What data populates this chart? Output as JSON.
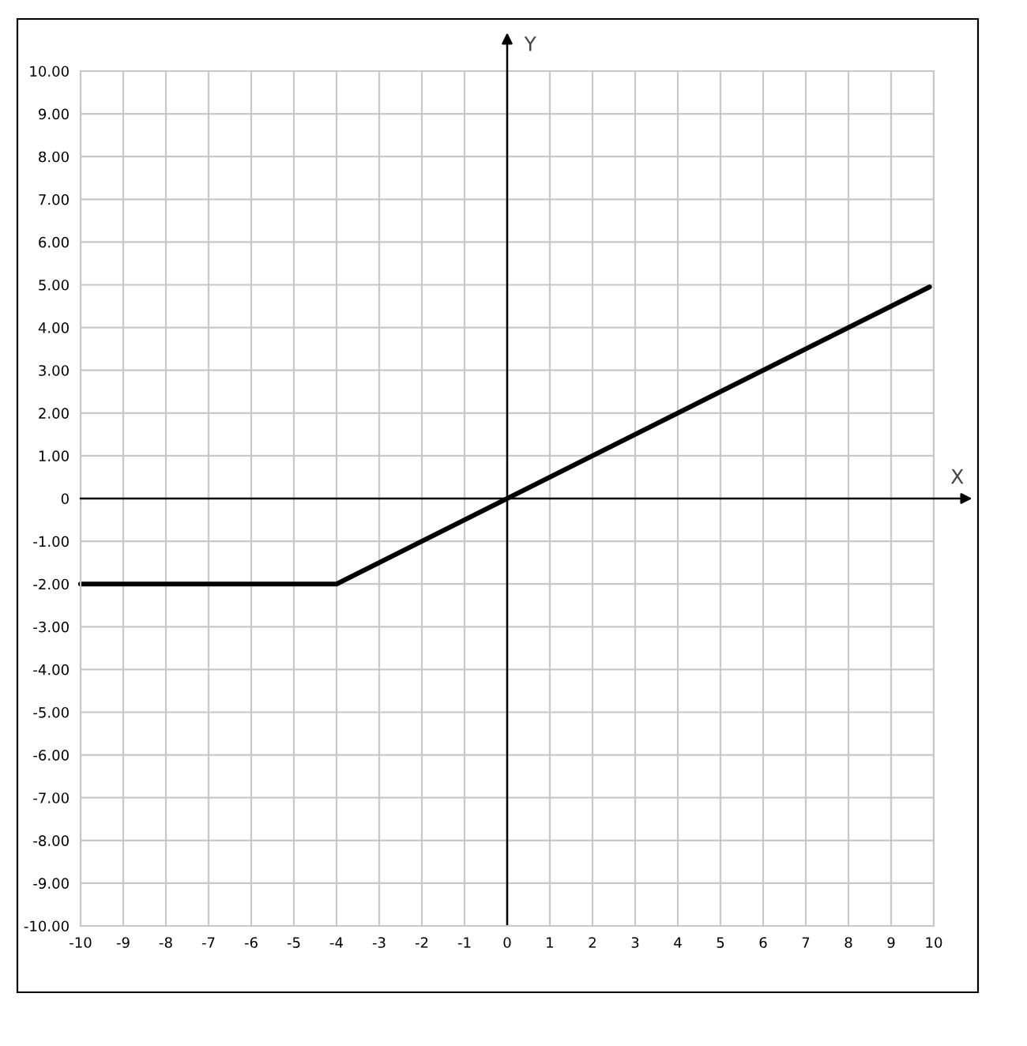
{
  "chart_data": {
    "type": "line",
    "xlabel": "X",
    "ylabel": "Y",
    "x": [
      -10,
      -4,
      9.9
    ],
    "series": [
      {
        "color": "#000000",
        "values": [
          -2,
          -2,
          4.95
        ]
      }
    ],
    "xlim": [
      -10,
      10
    ],
    "ylim": [
      -10,
      10
    ],
    "xticks": [
      -10,
      -9,
      -8,
      -7,
      -6,
      -5,
      -4,
      -3,
      -2,
      -1,
      0,
      1,
      2,
      3,
      4,
      5,
      6,
      7,
      8,
      9,
      10
    ],
    "yticks": [
      {
        "value": -10,
        "label": "-10.00"
      },
      {
        "value": -9,
        "label": "-9.00"
      },
      {
        "value": -8,
        "label": "-8.00"
      },
      {
        "value": -7,
        "label": "-7.00"
      },
      {
        "value": -6,
        "label": "-6.00"
      },
      {
        "value": -5,
        "label": "-5.00"
      },
      {
        "value": -4,
        "label": "-4.00"
      },
      {
        "value": -3,
        "label": "-3.00"
      },
      {
        "value": -2,
        "label": "-2.00"
      },
      {
        "value": -1,
        "label": "-1.00"
      },
      0,
      {
        "value": 1,
        "label": "1.00"
      },
      {
        "value": 2,
        "label": "2.00"
      },
      {
        "value": 3,
        "label": "3.00"
      },
      {
        "value": 4,
        "label": "4.00"
      },
      {
        "value": 5,
        "label": "5.00"
      },
      {
        "value": 6,
        "label": "6.00"
      },
      {
        "value": 7,
        "label": "7.00"
      },
      {
        "value": 8,
        "label": "8.00"
      },
      {
        "value": 9,
        "label": "9.00"
      },
      {
        "value": 10,
        "label": "10.00"
      }
    ],
    "grid": true
  }
}
